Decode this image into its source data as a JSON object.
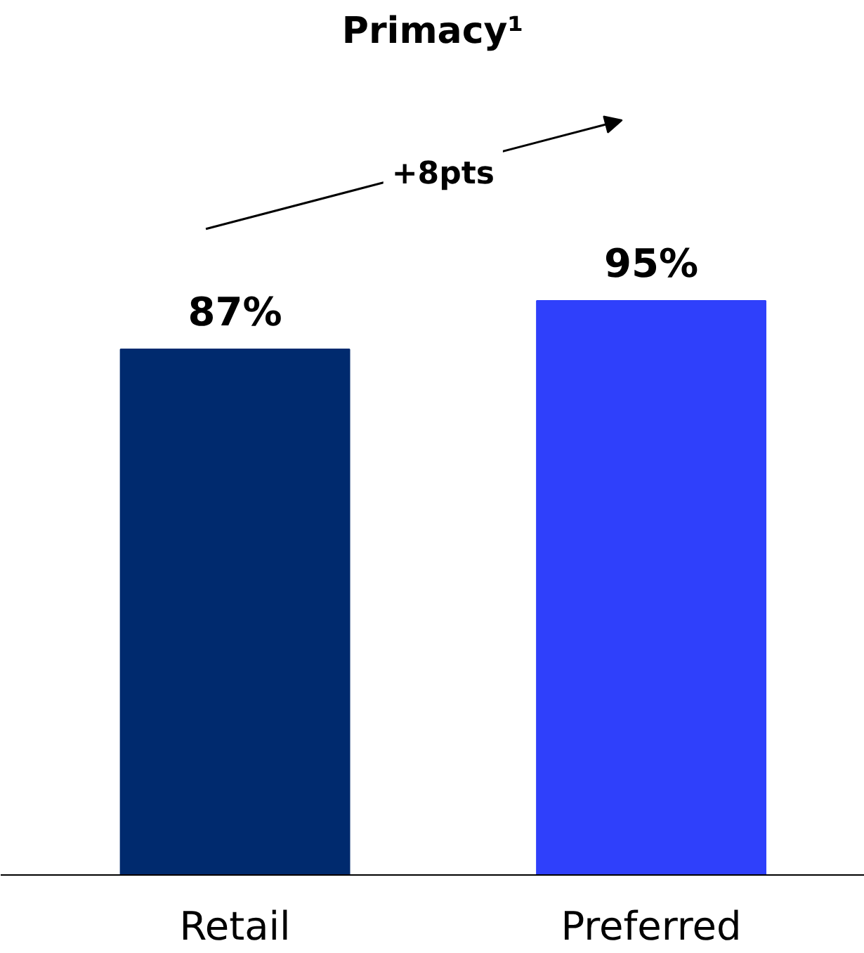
{
  "chart_data": {
    "type": "bar",
    "title": "Primacy¹",
    "categories": [
      "Retail",
      "Preferred"
    ],
    "values": [
      87,
      95
    ],
    "colors": [
      "#002a6e",
      "#2f40fb"
    ],
    "value_labels": [
      "87%",
      "95%"
    ],
    "tick_labels": "x",
    "annotations": [
      "+8pts"
    ]
  }
}
